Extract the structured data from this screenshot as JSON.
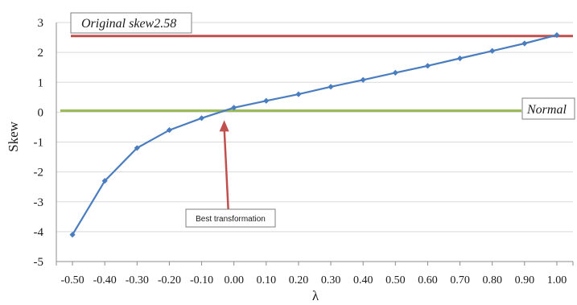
{
  "chart_data": {
    "type": "line",
    "xlabel": "λ",
    "ylabel": "Skew",
    "xlim": [
      -0.55,
      1.05
    ],
    "ylim": [
      -5,
      3
    ],
    "grid": "horizontal",
    "x_tick_labels": [
      "-0.50",
      "-0.40",
      "-0.30",
      "-0.20",
      "-0.10",
      "0.00",
      "0.10",
      "0.20",
      "0.30",
      "0.40",
      "0.50",
      "0.60",
      "0.70",
      "0.80",
      "0.90",
      "1.00"
    ],
    "y_tick_labels": [
      "3",
      "2",
      "1",
      "0",
      "-1",
      "-2",
      "-3",
      "-4",
      "-5"
    ],
    "series": [
      {
        "color": "#4a7dbf",
        "x": [
          -0.5,
          -0.4,
          -0.3,
          -0.2,
          -0.1,
          0.0,
          0.1,
          0.2,
          0.3,
          0.4,
          0.5,
          0.6,
          0.7,
          0.8,
          0.9,
          1.0
        ],
        "y": [
          -4.1,
          -2.3,
          -1.2,
          -0.6,
          -0.2,
          0.15,
          0.38,
          0.6,
          0.85,
          1.08,
          1.32,
          1.55,
          1.8,
          2.05,
          2.3,
          2.58
        ]
      }
    ],
    "reference_lines": [
      {
        "label": "Original skew2.58",
        "y": 2.55,
        "color": "#c0504d"
      },
      {
        "label": "Normal",
        "y": 0.05,
        "color": "#9bbb59"
      }
    ],
    "annotations": [
      {
        "text": "Best transformation",
        "point_x": -0.03,
        "point_y": 0,
        "arrow_color": "#c0504d"
      }
    ]
  }
}
